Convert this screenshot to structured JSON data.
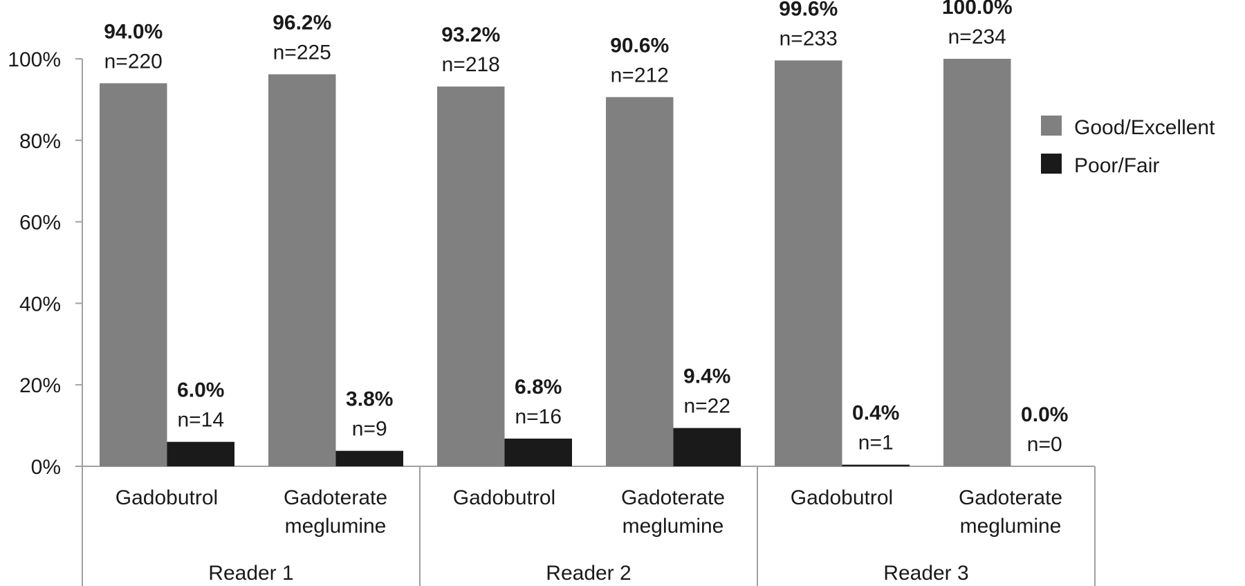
{
  "chart_data": {
    "type": "bar",
    "title": "",
    "xlabel": "",
    "ylabel": "",
    "ylim": [
      0,
      100
    ],
    "yticks": [
      "0%",
      "20%",
      "40%",
      "60%",
      "80%",
      "100%"
    ],
    "legend_position": "right",
    "groups": [
      {
        "label": "Reader 1",
        "categories": [
          "Gadobutrol",
          "Gadoterate meglumine"
        ]
      },
      {
        "label": "Reader 2",
        "categories": [
          "Gadobutrol",
          "Gadoterate meglumine"
        ]
      },
      {
        "label": "Reader 3",
        "categories": [
          "Gadobutrol",
          "Gadoterate meglumine"
        ]
      }
    ],
    "category_lines": [
      [
        "Gadobutrol"
      ],
      [
        "Gadoterate",
        "meglumine"
      ]
    ],
    "series": [
      {
        "name": "Good/Excellent",
        "color": "#808080",
        "values": [
          94.0,
          96.2,
          93.2,
          90.6,
          99.6,
          100.0
        ],
        "labels": [
          "94.0%",
          "96.2%",
          "93.2%",
          "90.6%",
          "99.6%",
          "100.0%"
        ],
        "n": [
          "n=220",
          "n=225",
          "n=218",
          "n=212",
          "n=233",
          "n=234"
        ]
      },
      {
        "name": "Poor/Fair",
        "color": "#1a1a1a",
        "values": [
          6.0,
          3.8,
          6.8,
          9.4,
          0.4,
          0.0
        ],
        "labels": [
          "6.0%",
          "3.8%",
          "6.8%",
          "9.4%",
          "0.4%",
          "0.0%"
        ],
        "n": [
          "n=14",
          "n=9",
          "n=16",
          "n=22",
          "n=1",
          "n=0"
        ]
      }
    ]
  }
}
